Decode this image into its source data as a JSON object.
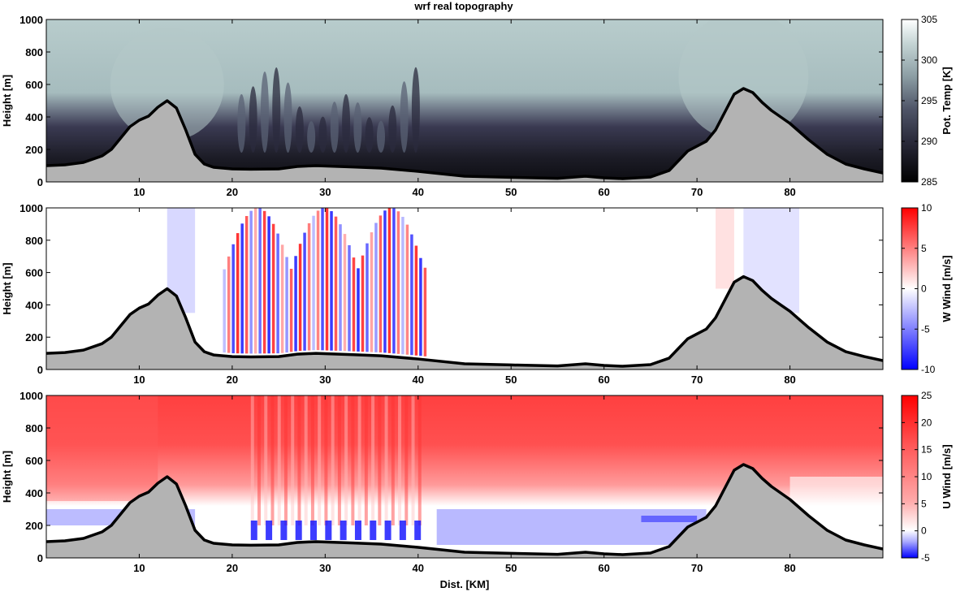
{
  "title": "wrf real topography",
  "colors": {
    "terrain_fill": "#b3b3b3",
    "terrain_line": "#000000",
    "temp_dark": "#0d0d12",
    "temp_mid": "#3a3a52",
    "temp_light": "#b8cccc",
    "wind_pos": "#ff0000",
    "wind_neg": "#0000ff",
    "wind_zero": "#ffffff"
  },
  "chart_data": [
    {
      "type": "heatmap",
      "panel": "potential-temperature",
      "ylabel": "Height [m]",
      "colorbar_label": "Pot. Temp [K]",
      "colorbar_ticks": [
        285,
        290,
        295,
        300,
        305
      ],
      "clim": [
        285,
        305
      ],
      "xlim": [
        0,
        90
      ],
      "ylim": [
        0,
        1000
      ],
      "xticks": [
        10,
        20,
        30,
        40,
        50,
        60,
        70,
        80
      ],
      "yticks": [
        0,
        200,
        400,
        600,
        800,
        1000
      ]
    },
    {
      "type": "heatmap",
      "panel": "w-wind",
      "ylabel": "Height [m]",
      "colorbar_label": "W Wind [m/s]",
      "colorbar_ticks": [
        -10,
        -5,
        0,
        5,
        10
      ],
      "clim": [
        -10,
        10
      ],
      "xlim": [
        0,
        90
      ],
      "ylim": [
        0,
        1000
      ],
      "xticks": [
        10,
        20,
        30,
        40,
        50,
        60,
        70,
        80
      ],
      "yticks": [
        0,
        200,
        400,
        600,
        800,
        1000
      ]
    },
    {
      "type": "heatmap",
      "panel": "u-wind",
      "xlabel": "Dist. [KM]",
      "ylabel": "Height [m]",
      "colorbar_label": "U Wind [m/s]",
      "colorbar_ticks": [
        -5,
        0,
        5,
        10,
        15,
        20,
        25
      ],
      "clim": [
        -5,
        25
      ],
      "xlim": [
        0,
        90
      ],
      "ylim": [
        0,
        1000
      ],
      "xticks": [
        10,
        20,
        30,
        40,
        50,
        60,
        70,
        80
      ],
      "yticks": [
        0,
        200,
        400,
        600,
        800,
        1000
      ]
    }
  ],
  "terrain": {
    "x": [
      0,
      2,
      4,
      6,
      7,
      8,
      9,
      10,
      11,
      12,
      13,
      14,
      15,
      16,
      17,
      18,
      20,
      22,
      25,
      27,
      29,
      33,
      36,
      40,
      45,
      50,
      55,
      58,
      60,
      62,
      65,
      67,
      68,
      69,
      70,
      71,
      72,
      73,
      74,
      75,
      76,
      77,
      78,
      79,
      80,
      82,
      84,
      86,
      88,
      90
    ],
    "height": [
      100,
      105,
      120,
      160,
      200,
      270,
      340,
      380,
      405,
      460,
      500,
      455,
      320,
      170,
      110,
      90,
      80,
      78,
      80,
      95,
      100,
      92,
      85,
      65,
      35,
      28,
      22,
      35,
      25,
      20,
      30,
      70,
      130,
      190,
      220,
      250,
      320,
      430,
      540,
      575,
      550,
      490,
      440,
      400,
      360,
      260,
      170,
      110,
      80,
      55
    ]
  }
}
